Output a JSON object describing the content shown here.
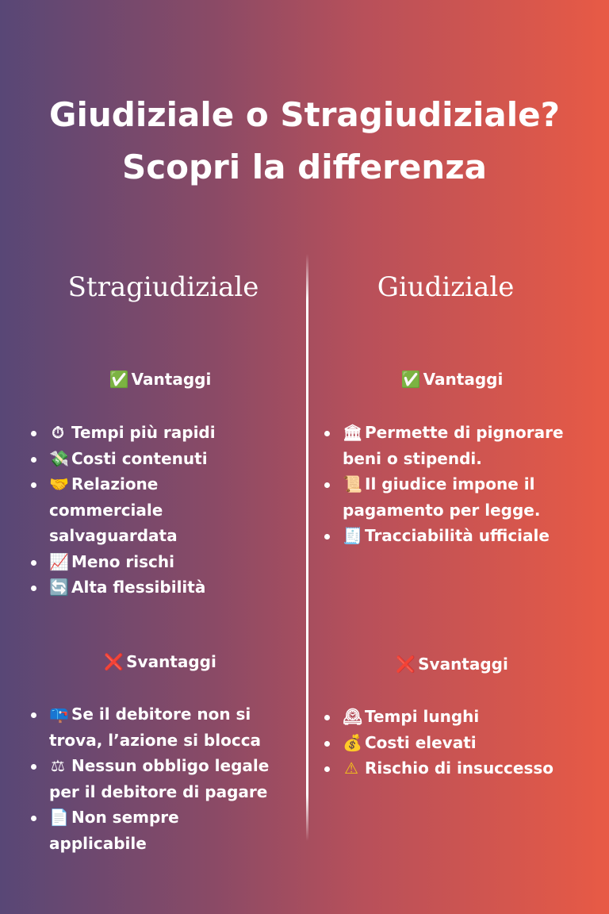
{
  "title": {
    "line1": "Giudiziale o Stragiudiziale?",
    "line2": "Scopri la differenza"
  },
  "colors": {
    "gradient_start": "#584776",
    "gradient_end": "#e85a45"
  },
  "left": {
    "heading": "Stragiudiziale",
    "pros_label": "Vantaggi",
    "pros_icon": "check-mark",
    "pros_glyph": "✅",
    "pros": [
      {
        "icon": "stopwatch",
        "glyph": "⏱",
        "text": "Tempi più rapidi"
      },
      {
        "icon": "money-with-wings",
        "glyph": "💸",
        "text": "Costi contenuti"
      },
      {
        "icon": "handshake",
        "glyph": "🤝",
        "text": "Relazione commerciale salvaguardata"
      },
      {
        "icon": "chart-increasing",
        "glyph": "📈",
        "text": "Meno rischi"
      },
      {
        "icon": "arrows-cycle",
        "glyph": "🔄",
        "text": "Alta flessibilità"
      }
    ],
    "cons_label": "Svantaggi",
    "cons_icon": "cross-mark",
    "cons_glyph": "❌",
    "cons": [
      {
        "icon": "mailbox",
        "glyph": "📪",
        "text": "Se il debitore non si trova, l’azione si blocca"
      },
      {
        "icon": "balance-scale",
        "glyph": "⚖",
        "text": "Nessun obbligo legale per il debitore di pagare"
      },
      {
        "icon": "document",
        "glyph": "📄",
        "text": "Non sempre applicabile"
      }
    ]
  },
  "right": {
    "heading": "Giudiziale",
    "pros_label": "Vantaggi",
    "pros_icon": "check-mark",
    "pros_glyph": "✅",
    "pros": [
      {
        "icon": "classical-building",
        "glyph": "🏛",
        "text": "Permette di pignorare beni o stipendi."
      },
      {
        "icon": "scroll",
        "glyph": "📜",
        "text": "Il giudice impone il pagamento per legge."
      },
      {
        "icon": "receipt",
        "glyph": "🧾",
        "text": "Tracciabilità ufficiale"
      }
    ],
    "cons_label": "Svantaggi",
    "cons_icon": "cross-mark",
    "cons_glyph": "❌",
    "cons": [
      {
        "icon": "mantelpiece-clock",
        "glyph": "🕰",
        "text": "Tempi lunghi"
      },
      {
        "icon": "money-bag",
        "glyph": "💰",
        "text": "Costi elevati"
      },
      {
        "icon": "warning",
        "glyph": "⚠",
        "text": "Rischio di insuccesso"
      }
    ]
  }
}
